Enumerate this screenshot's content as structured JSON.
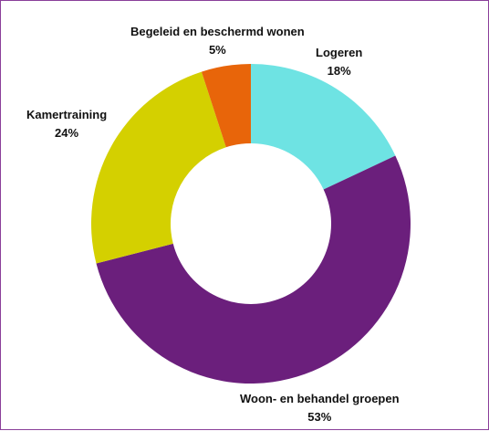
{
  "chart_data": {
    "type": "pie",
    "style": "donut",
    "title": "",
    "slices": [
      {
        "label": "Logeren",
        "percent_label": "18%",
        "value": 18,
        "color": "#6ee3e3"
      },
      {
        "label": "Woon- en behandel groepen",
        "percent_label": "53%",
        "value": 53,
        "color": "#6b1f7c"
      },
      {
        "label": "Kamertraining",
        "percent_label": "24%",
        "value": 24,
        "color": "#d4d000"
      },
      {
        "label": "Begeleid en beschermd wonen",
        "percent_label": "5%",
        "value": 5,
        "color": "#e8650a"
      }
    ]
  }
}
